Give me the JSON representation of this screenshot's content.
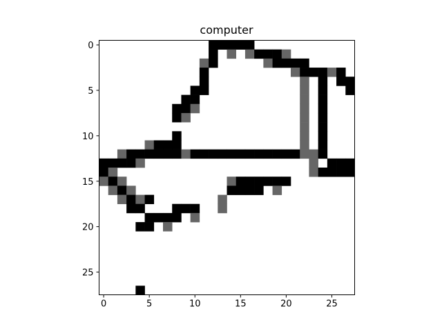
{
  "chart_data": {
    "type": "heatmap",
    "title": "computer",
    "xlabel": "",
    "ylabel": "",
    "grid": false,
    "colormap": "gray_r",
    "value_colors": {
      "0": "#ffffff",
      "1": "#666666",
      "2": "#000000"
    },
    "rows": 28,
    "cols": 28,
    "xlim": [
      -0.5,
      27.5
    ],
    "ylim": [
      27.5,
      -0.5
    ],
    "xticks": [
      0,
      5,
      10,
      15,
      20,
      25
    ],
    "yticks": [
      0,
      5,
      10,
      15,
      20,
      25
    ],
    "xtick_labels": [
      "0",
      "5",
      "10",
      "15",
      "20",
      "25"
    ],
    "ytick_labels": [
      "0",
      "5",
      "10",
      "15",
      "20",
      "25"
    ],
    "pixels": [
      "............22222...........",
      "............2.1.12221.......",
      "...........12.....12222.....",
      "...........2.........122212.",
      "...........2..........1.2.22",
      "..........22..........1.2..2",
      ".........22...........1.2...",
      "........221...........1.2...",
      "........21............1.2...",
      "......................1.2...",
      "........2.............1.2...",
      ".....1222.............1.2...",
      "..12222221222222222222112...",
      "22221..................1.2222.",
      "21.....................122222",
      "121...........1222222.......",
      ".121..........2222.1........",
      "..1212.......1..............",
      "...22...222..1..............",
      ".....2222.1.................",
      "....22.1....................",
      "............................",
      "............................",
      "............................",
      "............................",
      "............................",
      "............................",
      "....2......................."
    ]
  }
}
